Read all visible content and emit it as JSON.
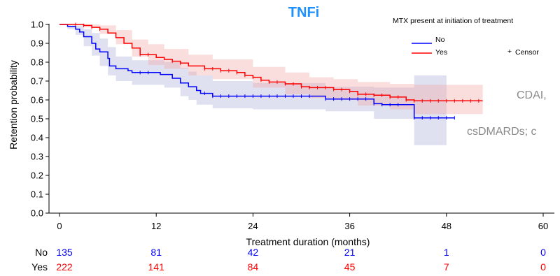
{
  "chart_data": {
    "type": "line",
    "title": "TNFi",
    "xlabel": "Treatment duration (months)",
    "ylabel": "Retention probability",
    "xlim": [
      0,
      60
    ],
    "ylim": [
      0.0,
      1.0
    ],
    "xticks": [
      0,
      12,
      24,
      36,
      48,
      60
    ],
    "yticks": [
      0.0,
      0.1,
      0.2,
      0.3,
      0.4,
      0.5,
      0.6,
      0.7,
      0.8,
      0.9,
      1.0
    ],
    "legend": {
      "title": "MTX present at initiation of treatment",
      "position": "top-right",
      "censor_label": "Censor"
    },
    "series": [
      {
        "name": "No",
        "color": "#0000ff",
        "band_color": "#9aa0cf",
        "steps": [
          [
            0,
            1.0
          ],
          [
            1,
            0.99
          ],
          [
            2,
            0.975
          ],
          [
            2.5,
            0.96
          ],
          [
            3,
            0.935
          ],
          [
            4,
            0.9
          ],
          [
            4.5,
            0.87
          ],
          [
            5,
            0.855
          ],
          [
            6,
            0.82
          ],
          [
            6.2,
            0.78
          ],
          [
            7,
            0.765
          ],
          [
            8.5,
            0.755
          ],
          [
            9,
            0.745
          ],
          [
            12.5,
            0.735
          ],
          [
            14,
            0.715
          ],
          [
            15,
            0.69
          ],
          [
            16,
            0.67
          ],
          [
            17,
            0.65
          ],
          [
            17.5,
            0.635
          ],
          [
            19,
            0.62
          ],
          [
            33,
            0.605
          ],
          [
            39,
            0.58
          ],
          [
            40,
            0.575
          ],
          [
            44,
            0.505
          ],
          [
            49,
            0.505
          ]
        ],
        "lower": [
          [
            0,
            1.0
          ],
          [
            1,
            0.975
          ],
          [
            2,
            0.945
          ],
          [
            3,
            0.885
          ],
          [
            4,
            0.835
          ],
          [
            5,
            0.78
          ],
          [
            6,
            0.73
          ],
          [
            7,
            0.7
          ],
          [
            9,
            0.68
          ],
          [
            13,
            0.665
          ],
          [
            15,
            0.62
          ],
          [
            16,
            0.6
          ],
          [
            17,
            0.575
          ],
          [
            19,
            0.555
          ],
          [
            24,
            0.55
          ],
          [
            33,
            0.54
          ],
          [
            39,
            0.5
          ],
          [
            44,
            0.36
          ],
          [
            48,
            0.36
          ]
        ],
        "upper": [
          [
            0,
            1.0
          ],
          [
            1,
            1.0
          ],
          [
            2,
            0.995
          ],
          [
            3,
            0.975
          ],
          [
            4,
            0.955
          ],
          [
            5,
            0.925
          ],
          [
            6,
            0.88
          ],
          [
            7,
            0.83
          ],
          [
            9,
            0.81
          ],
          [
            13,
            0.8
          ],
          [
            15,
            0.77
          ],
          [
            16,
            0.75
          ],
          [
            17,
            0.73
          ],
          [
            19,
            0.7
          ],
          [
            24,
            0.69
          ],
          [
            33,
            0.67
          ],
          [
            39,
            0.665
          ],
          [
            44,
            0.73
          ],
          [
            48,
            0.73
          ]
        ],
        "censor_times": [
          10,
          11,
          18,
          19,
          20,
          21,
          22,
          23,
          24,
          25,
          26,
          27,
          28,
          29,
          30,
          31,
          33,
          34,
          35,
          36,
          37,
          38,
          39,
          40,
          41,
          42,
          44,
          45,
          46,
          47,
          48,
          49
        ],
        "at_risk": [
          135,
          81,
          42,
          21,
          1,
          0
        ]
      },
      {
        "name": "Yes",
        "color": "#ff0000",
        "band_color": "#f3a5a5",
        "steps": [
          [
            0,
            1.0
          ],
          [
            3,
            0.995
          ],
          [
            4,
            0.985
          ],
          [
            5,
            0.975
          ],
          [
            6,
            0.955
          ],
          [
            7,
            0.93
          ],
          [
            8,
            0.9
          ],
          [
            9,
            0.875
          ],
          [
            10,
            0.84
          ],
          [
            12,
            0.825
          ],
          [
            13,
            0.815
          ],
          [
            14,
            0.805
          ],
          [
            15,
            0.795
          ],
          [
            16,
            0.78
          ],
          [
            18,
            0.765
          ],
          [
            20,
            0.755
          ],
          [
            22,
            0.745
          ],
          [
            23,
            0.73
          ],
          [
            24,
            0.72
          ],
          [
            25,
            0.705
          ],
          [
            26,
            0.695
          ],
          [
            28,
            0.685
          ],
          [
            30,
            0.67
          ],
          [
            31,
            0.665
          ],
          [
            34,
            0.655
          ],
          [
            36,
            0.645
          ],
          [
            37,
            0.63
          ],
          [
            39,
            0.625
          ],
          [
            41,
            0.615
          ],
          [
            43,
            0.6
          ],
          [
            44,
            0.595
          ],
          [
            52.5,
            0.595
          ]
        ],
        "lower": [
          [
            0,
            1.0
          ],
          [
            3,
            0.985
          ],
          [
            5,
            0.95
          ],
          [
            7,
            0.895
          ],
          [
            9,
            0.83
          ],
          [
            11,
            0.785
          ],
          [
            13,
            0.765
          ],
          [
            16,
            0.73
          ],
          [
            19,
            0.71
          ],
          [
            24,
            0.665
          ],
          [
            28,
            0.63
          ],
          [
            31,
            0.61
          ],
          [
            34,
            0.6
          ],
          [
            37,
            0.57
          ],
          [
            41,
            0.55
          ],
          [
            44,
            0.525
          ],
          [
            52.5,
            0.525
          ]
        ],
        "upper": [
          [
            0,
            1.0
          ],
          [
            3,
            1.0
          ],
          [
            5,
            0.995
          ],
          [
            7,
            0.97
          ],
          [
            9,
            0.92
          ],
          [
            11,
            0.895
          ],
          [
            13,
            0.87
          ],
          [
            16,
            0.84
          ],
          [
            19,
            0.815
          ],
          [
            24,
            0.775
          ],
          [
            28,
            0.745
          ],
          [
            31,
            0.72
          ],
          [
            34,
            0.71
          ],
          [
            37,
            0.695
          ],
          [
            41,
            0.685
          ],
          [
            44,
            0.68
          ],
          [
            52.5,
            0.68
          ]
        ],
        "censor_times": [
          2,
          3,
          4,
          5,
          10,
          11,
          14,
          15,
          18,
          19,
          20,
          21,
          22,
          23,
          24,
          25,
          26,
          27,
          28,
          29,
          30,
          31,
          32,
          33,
          34,
          35,
          36,
          37,
          38,
          39,
          40,
          41,
          42,
          43,
          44,
          45,
          46,
          47,
          48,
          49,
          50,
          51,
          52
        ],
        "at_risk": [
          222,
          141,
          84,
          45,
          7,
          0
        ]
      }
    ],
    "overlay_text": [
      "CDAI,",
      "csDMARDs; c"
    ]
  }
}
